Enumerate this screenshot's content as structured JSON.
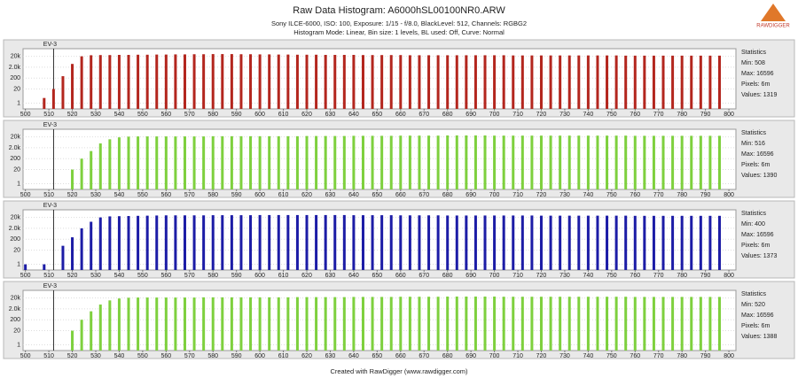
{
  "title": "Raw Data Histogram: A6000hSL00100NR0.ARW",
  "subtitle_lines": [
    "Sony ILCE-6000, ISO: 100, Exposure: 1/15 - f/8.0, BlackLevel: 512, Channels: RGBG2",
    "Histogram Mode: Linear, Bin size: 1 levels, BL used: Off, Curve: Normal"
  ],
  "logo": "RAWDIGGER",
  "footer": "Created with RawDigger (www.rawdigger.com)",
  "chart_data": [
    {
      "type": "bar",
      "color": "#b3261e",
      "ylog": true,
      "grid": true,
      "xlim": [
        499,
        803
      ],
      "ylim": [
        0.3,
        100000
      ],
      "xticks": [
        500,
        510,
        520,
        530,
        540,
        550,
        560,
        570,
        580,
        590,
        600,
        610,
        620,
        630,
        640,
        650,
        660,
        670,
        680,
        690,
        700,
        710,
        720,
        730,
        740,
        750,
        760,
        770,
        780,
        790,
        800
      ],
      "yticks": [
        1,
        20,
        200,
        {
          "value": 2000,
          "label": "2.0k"
        },
        {
          "value": 20000,
          "label": "20k"
        }
      ],
      "annotation": {
        "label": "EV-3",
        "x": 512
      },
      "statistics": {
        "title": "Statistics",
        "lines": [
          "Min: 508",
          "Max: 16596",
          "Pixels: 6m",
          "Values: 1319"
        ]
      },
      "x": [
        508,
        512,
        516,
        520,
        524,
        528,
        532,
        536,
        540,
        544,
        548,
        552,
        556,
        560,
        564,
        568,
        572,
        576,
        580,
        584,
        588,
        592,
        596,
        600,
        604,
        608,
        612,
        616,
        620,
        624,
        628,
        632,
        636,
        640,
        644,
        648,
        652,
        656,
        660,
        664,
        668,
        672,
        676,
        680,
        684,
        688,
        692,
        696,
        700,
        704,
        708,
        712,
        716,
        720,
        724,
        728,
        732,
        736,
        740,
        744,
        748,
        752,
        756,
        760,
        764,
        768,
        772,
        776,
        780,
        784,
        788,
        792,
        796
      ],
      "values": [
        3,
        20,
        300,
        4000,
        20000,
        25000,
        26000,
        26000,
        27000,
        27000,
        28000,
        28000,
        29000,
        29000,
        30000,
        30000,
        31000,
        31000,
        32000,
        32000,
        32000,
        31000,
        31000,
        30000,
        30000,
        29000,
        29000,
        28000,
        28000,
        28000,
        27000,
        27000,
        27000,
        27000,
        26000,
        26000,
        26000,
        26000,
        26000,
        25000,
        25000,
        25000,
        25000,
        25000,
        25000,
        25000,
        25000,
        25000,
        25000,
        25000,
        24000,
        24000,
        24000,
        24000,
        24000,
        24000,
        24000,
        24000,
        24000,
        24000,
        24000,
        24000,
        23000,
        23000,
        23000,
        23000,
        23000,
        23000,
        23000,
        23000,
        23000,
        23000,
        23000
      ]
    },
    {
      "type": "bar",
      "color": "#7ed03e",
      "ylog": true,
      "grid": true,
      "xlim": [
        499,
        803
      ],
      "ylim": [
        0.3,
        100000
      ],
      "xticks": [
        500,
        510,
        520,
        530,
        540,
        550,
        560,
        570,
        580,
        590,
        600,
        610,
        620,
        630,
        640,
        650,
        660,
        670,
        680,
        690,
        700,
        710,
        720,
        730,
        740,
        750,
        760,
        770,
        780,
        790,
        800
      ],
      "yticks": [
        1,
        20,
        200,
        {
          "value": 2000,
          "label": "2.0k"
        },
        {
          "value": 20000,
          "label": "20k"
        }
      ],
      "annotation": {
        "label": "EV-3",
        "x": 512
      },
      "statistics": {
        "title": "Statistics",
        "lines": [
          "Min: 516",
          "Max: 16596",
          "Pixels: 6m",
          "Values: 1390"
        ]
      },
      "x": [
        520,
        524,
        528,
        532,
        536,
        540,
        544,
        548,
        552,
        556,
        560,
        564,
        568,
        572,
        576,
        580,
        584,
        588,
        592,
        596,
        600,
        604,
        608,
        612,
        616,
        620,
        624,
        628,
        632,
        636,
        640,
        644,
        648,
        652,
        656,
        660,
        664,
        668,
        672,
        676,
        680,
        684,
        688,
        692,
        696,
        700,
        704,
        708,
        712,
        716,
        720,
        724,
        728,
        732,
        736,
        740,
        744,
        748,
        752,
        756,
        760,
        764,
        768,
        772,
        776,
        780,
        784,
        788,
        792,
        796
      ],
      "values": [
        20,
        200,
        1000,
        5000,
        12000,
        18000,
        21000,
        22000,
        22000,
        22000,
        22000,
        22000,
        22000,
        22000,
        22000,
        23000,
        23000,
        23000,
        23000,
        23000,
        23000,
        23000,
        23000,
        23000,
        23000,
        24000,
        24000,
        24000,
        24000,
        24000,
        25000,
        25000,
        25000,
        25000,
        25000,
        26000,
        26000,
        26000,
        26000,
        26000,
        27000,
        27000,
        27000,
        27000,
        27000,
        26000,
        26000,
        26000,
        26000,
        26000,
        26000,
        26000,
        26000,
        26000,
        26000,
        26000,
        26000,
        26000,
        26000,
        26000,
        25000,
        25000,
        25000,
        25000,
        25000,
        25000,
        25000,
        25000,
        25000,
        25000
      ]
    },
    {
      "type": "bar",
      "color": "#1c1ca6",
      "ylog": true,
      "grid": true,
      "xlim": [
        499,
        803
      ],
      "ylim": [
        0.3,
        100000
      ],
      "xticks": [
        500,
        510,
        520,
        530,
        540,
        550,
        560,
        570,
        580,
        590,
        600,
        610,
        620,
        630,
        640,
        650,
        660,
        670,
        680,
        690,
        700,
        710,
        720,
        730,
        740,
        750,
        760,
        770,
        780,
        790,
        800
      ],
      "yticks": [
        1,
        20,
        200,
        {
          "value": 2000,
          "label": "2.0k"
        },
        {
          "value": 20000,
          "label": "20k"
        }
      ],
      "annotation": {
        "label": "EV-3",
        "x": 512
      },
      "statistics": {
        "title": "Statistics",
        "lines": [
          "Min: 400",
          "Max: 16596",
          "Pixels: 6m",
          "Values: 1373"
        ]
      },
      "x": [
        500,
        508,
        516,
        520,
        524,
        528,
        532,
        536,
        540,
        544,
        548,
        552,
        556,
        560,
        564,
        568,
        572,
        576,
        580,
        584,
        588,
        592,
        596,
        600,
        604,
        608,
        612,
        616,
        620,
        624,
        628,
        632,
        636,
        640,
        644,
        648,
        652,
        656,
        660,
        664,
        668,
        672,
        676,
        680,
        684,
        688,
        692,
        696,
        700,
        704,
        708,
        712,
        716,
        720,
        724,
        728,
        732,
        736,
        740,
        744,
        748,
        752,
        756,
        760,
        764,
        768,
        772,
        776,
        780,
        784,
        788,
        792,
        796
      ],
      "values": [
        1,
        1,
        50,
        300,
        2000,
        8000,
        20000,
        25000,
        26000,
        27000,
        28000,
        29000,
        30000,
        31000,
        31000,
        31000,
        31000,
        31000,
        32000,
        32000,
        32000,
        32000,
        32000,
        33000,
        33000,
        33000,
        33000,
        33000,
        33000,
        33000,
        33000,
        33000,
        33000,
        32000,
        32000,
        32000,
        32000,
        32000,
        31000,
        31000,
        31000,
        31000,
        31000,
        30000,
        30000,
        30000,
        30000,
        30000,
        30000,
        30000,
        30000,
        30000,
        30000,
        29000,
        29000,
        29000,
        29000,
        29000,
        29000,
        29000,
        29000,
        29000,
        29000,
        28000,
        28000,
        28000,
        28000,
        28000,
        28000,
        28000,
        28000,
        28000,
        28000
      ]
    },
    {
      "type": "bar",
      "color": "#7ed03e",
      "ylog": true,
      "grid": true,
      "xlim": [
        499,
        803
      ],
      "ylim": [
        0.3,
        100000
      ],
      "xticks": [
        500,
        510,
        520,
        530,
        540,
        550,
        560,
        570,
        580,
        590,
        600,
        610,
        620,
        630,
        640,
        650,
        660,
        670,
        680,
        690,
        700,
        710,
        720,
        730,
        740,
        750,
        760,
        770,
        780,
        790,
        800
      ],
      "yticks": [
        1,
        20,
        200,
        {
          "value": 2000,
          "label": "2.0k"
        },
        {
          "value": 20000,
          "label": "20k"
        }
      ],
      "annotation": {
        "label": "EV-3",
        "x": 512
      },
      "statistics": {
        "title": "Statistics",
        "lines": [
          "Min: 520",
          "Max: 16596",
          "Pixels: 6m",
          "Values: 1388"
        ]
      },
      "x": [
        520,
        524,
        528,
        532,
        536,
        540,
        544,
        548,
        552,
        556,
        560,
        564,
        568,
        572,
        576,
        580,
        584,
        588,
        592,
        596,
        600,
        604,
        608,
        612,
        616,
        620,
        624,
        628,
        632,
        636,
        640,
        644,
        648,
        652,
        656,
        660,
        664,
        668,
        672,
        676,
        680,
        684,
        688,
        692,
        696,
        700,
        704,
        708,
        712,
        716,
        720,
        724,
        728,
        732,
        736,
        740,
        744,
        748,
        752,
        756,
        760,
        764,
        768,
        772,
        776,
        780,
        784,
        788,
        792,
        796
      ],
      "values": [
        20,
        200,
        1200,
        5000,
        12000,
        18000,
        21000,
        22000,
        22000,
        22000,
        22000,
        22000,
        22000,
        22000,
        23000,
        23000,
        23000,
        23000,
        23000,
        23000,
        23000,
        23000,
        23000,
        23000,
        24000,
        24000,
        24000,
        24000,
        24000,
        24000,
        25000,
        25000,
        25000,
        25000,
        25000,
        26000,
        26000,
        26000,
        26000,
        26000,
        27000,
        27000,
        27000,
        27000,
        27000,
        27000,
        26000,
        26000,
        26000,
        26000,
        26000,
        26000,
        26000,
        26000,
        26000,
        26000,
        26000,
        26000,
        26000,
        26000,
        25000,
        25000,
        25000,
        25000,
        25000,
        25000,
        25000,
        25000,
        25000,
        25000
      ]
    }
  ]
}
